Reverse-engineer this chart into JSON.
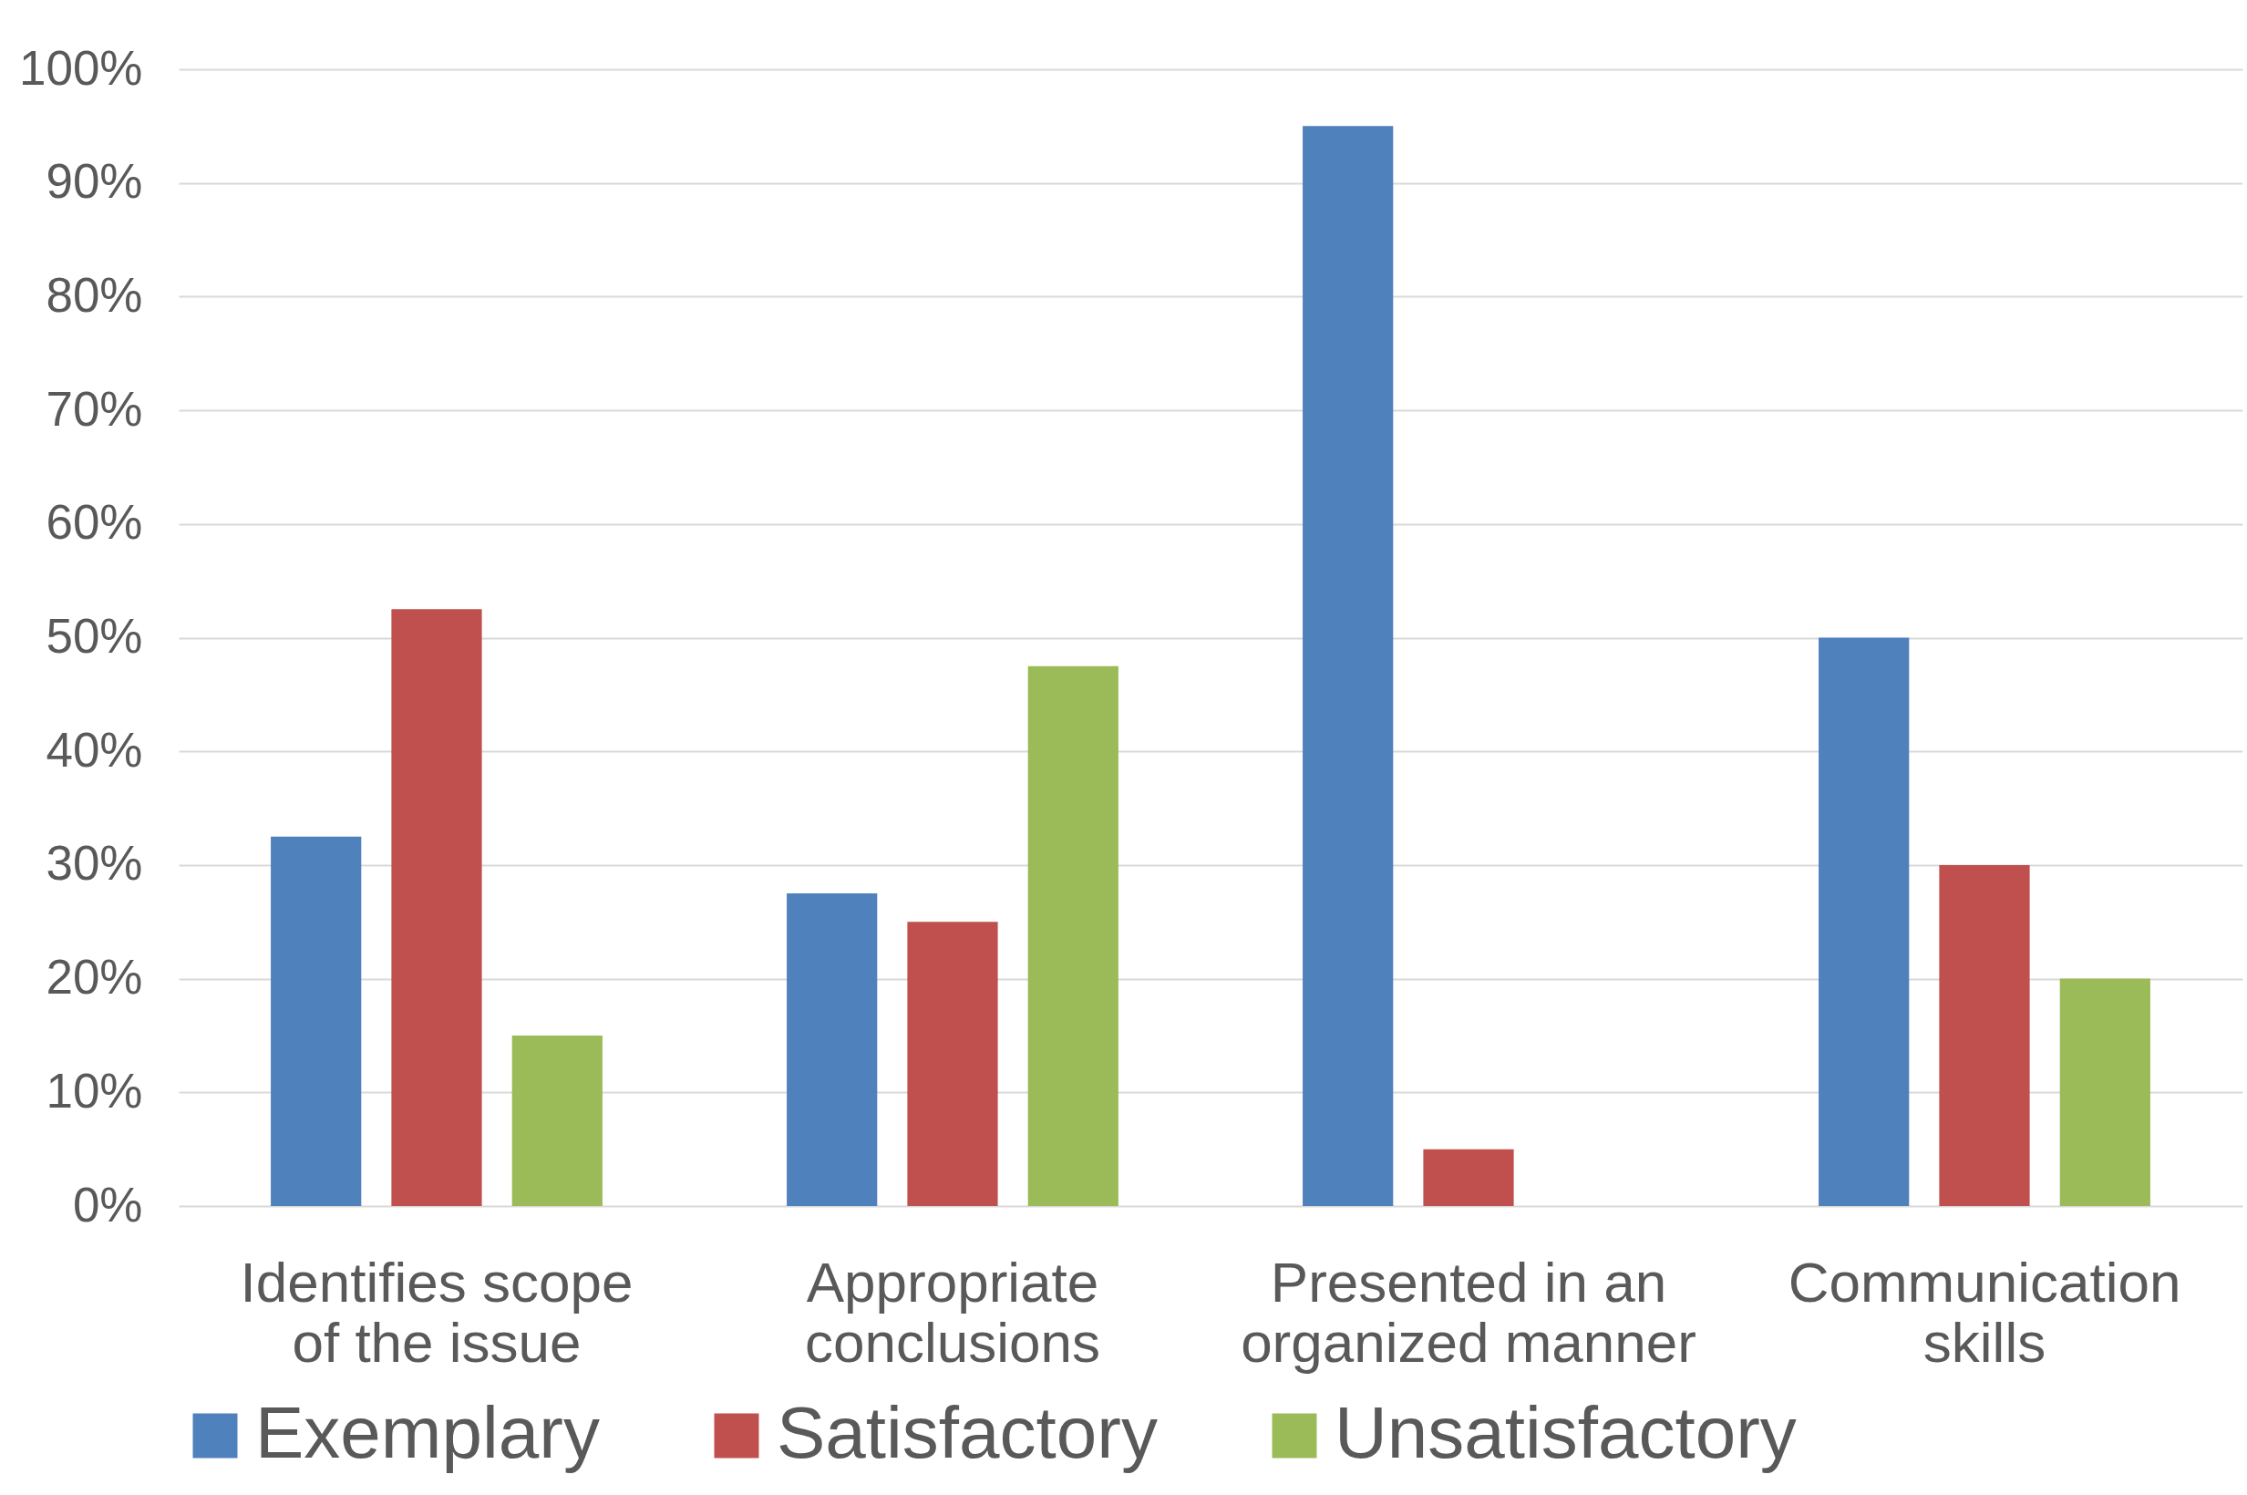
{
  "chart_data": {
    "type": "bar",
    "categories": [
      "Identifies scope of the issue",
      "Appropriate conclusions",
      "Presented in an organized manner",
      "Communication skills"
    ],
    "series": [
      {
        "name": "Exemplary",
        "color": "#4f81bd",
        "values": [
          32.5,
          27.5,
          95,
          50
        ]
      },
      {
        "name": "Satisfactory",
        "color": "#c0504d",
        "values": [
          52.5,
          25,
          5,
          30
        ]
      },
      {
        "name": "Unsatisfactory",
        "color": "#9bbb59",
        "values": [
          15,
          47.5,
          0,
          20
        ]
      }
    ],
    "ylim": [
      0,
      100
    ],
    "yticks": [
      {
        "value": 0,
        "label": "0%"
      },
      {
        "value": 10,
        "label": "10%"
      },
      {
        "value": 20,
        "label": "20%"
      },
      {
        "value": 30,
        "label": "30%"
      },
      {
        "value": 40,
        "label": "40%"
      },
      {
        "value": 50,
        "label": "50%"
      },
      {
        "value": 60,
        "label": "60%"
      },
      {
        "value": 70,
        "label": "70%"
      },
      {
        "value": 80,
        "label": "80%"
      },
      {
        "value": 90,
        "label": "90%"
      },
      {
        "value": 100,
        "label": "100%"
      }
    ],
    "grid": "y",
    "legend": "bottom"
  }
}
